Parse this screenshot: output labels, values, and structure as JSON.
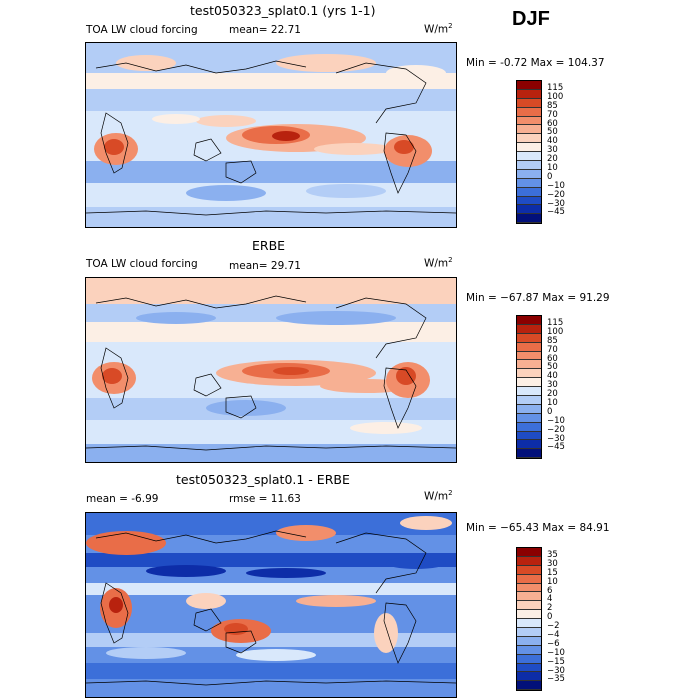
{
  "season": "DJF",
  "panels": [
    {
      "title": "test050323_splat0.1 (yrs 1-1)",
      "subtitle_left": "TOA LW cloud forcing",
      "stat1_label": "mean=",
      "stat1_value": "22.71",
      "units": "W/m",
      "units_sup": "2",
      "minmax": "Min =  -0.72 Max = 104.37",
      "levels": [
        "115",
        "100",
        "85",
        "70",
        "60",
        "50",
        "40",
        "30",
        "20",
        "10",
        "0",
        "−10",
        "−20",
        "−30",
        "−45"
      ],
      "colors": [
        "#8b0000",
        "#b8220e",
        "#d84a26",
        "#e96d48",
        "#f28e6b",
        "#f7b093",
        "#fbd2bd",
        "#fcefe5",
        "#d9e8fb",
        "#b3cdf6",
        "#8bb0ef",
        "#6391e6",
        "#3c6fd9",
        "#1f4cc4",
        "#0d2da8",
        "#02107a"
      ]
    },
    {
      "title": "ERBE",
      "subtitle_left": "TOA LW cloud forcing",
      "stat1_label": "mean=",
      "stat1_value": "29.71",
      "units": "W/m",
      "units_sup": "2",
      "minmax": "Min = −67.87 Max =  91.29",
      "levels": [
        "115",
        "100",
        "85",
        "70",
        "60",
        "50",
        "40",
        "30",
        "20",
        "10",
        "0",
        "−10",
        "−20",
        "−30",
        "−45"
      ],
      "colors": [
        "#8b0000",
        "#b8220e",
        "#d84a26",
        "#e96d48",
        "#f28e6b",
        "#f7b093",
        "#fbd2bd",
        "#fcefe5",
        "#d9e8fb",
        "#b3cdf6",
        "#8bb0ef",
        "#6391e6",
        "#3c6fd9",
        "#1f4cc4",
        "#0d2da8",
        "#02107a"
      ]
    },
    {
      "title": "test050323_splat0.1 - ERBE",
      "stat1_label": "mean =",
      "stat1_value": "-6.99",
      "stat2_label": "rmse =",
      "stat2_value": "11.63",
      "units": "W/m",
      "units_sup": "2",
      "minmax": "Min = −65.43 Max =  84.91",
      "levels": [
        "35",
        "30",
        "15",
        "10",
        "6",
        "4",
        "2",
        "0",
        "−2",
        "−4",
        "−6",
        "−10",
        "−15",
        "−30",
        "−35"
      ],
      "colors": [
        "#8b0000",
        "#b8220e",
        "#d84a26",
        "#e96d48",
        "#f28e6b",
        "#f7b093",
        "#fbd2bd",
        "#fcefe5",
        "#d9e8fb",
        "#b3cdf6",
        "#8bb0ef",
        "#6391e6",
        "#3c6fd9",
        "#1f4cc4",
        "#0d2da8",
        "#02107a"
      ]
    }
  ]
}
